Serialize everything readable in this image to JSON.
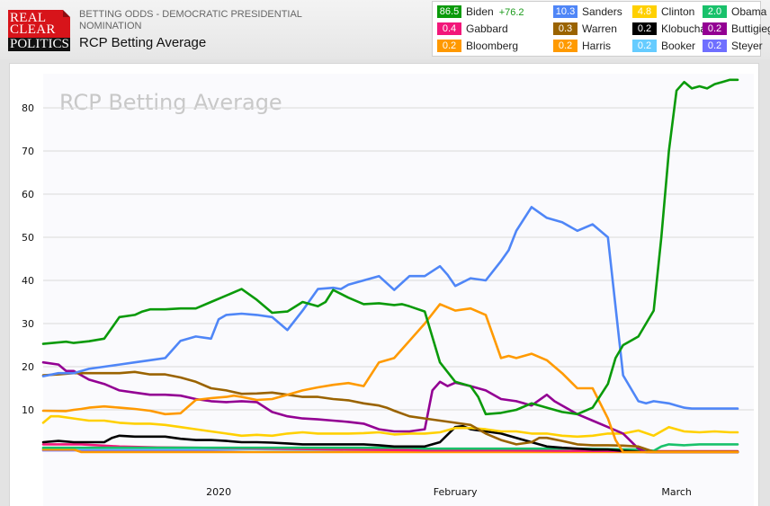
{
  "header": {
    "logo_lines": [
      "REAL",
      "CLEAR",
      "POLITICS"
    ],
    "subtitle": "BETTING ODDS - DEMOCRATIC PRESIDENTIAL NOMINATION",
    "title": "RCP Betting Average"
  },
  "legend": [
    {
      "name": "Biden",
      "value": "86.5",
      "change": "+76.2",
      "color": "#0a9a0a"
    },
    {
      "name": "Sanders",
      "value": "10.3",
      "color": "#4f86f7"
    },
    {
      "name": "Clinton",
      "value": "4.8",
      "color": "#ffd000"
    },
    {
      "name": "Obama",
      "value": "2.0",
      "color": "#19c16b"
    },
    {
      "name": "Gabbard",
      "value": "0.4",
      "color": "#f2177a"
    },
    {
      "name": "Warren",
      "value": "0.3",
      "color": "#9a6300"
    },
    {
      "name": "Klobuchar",
      "value": "0.2",
      "color": "#000000"
    },
    {
      "name": "Buttigieg",
      "value": "0.2",
      "color": "#930093"
    },
    {
      "name": "Bloomberg",
      "value": "0.2",
      "color": "#ff9900"
    },
    {
      "name": "Harris",
      "value": "0.2",
      "color": "#ff9a00"
    },
    {
      "name": "Booker",
      "value": "0.2",
      "color": "#66ccff"
    },
    {
      "name": "Steyer",
      "value": "0.2",
      "color": "#6f6fff"
    }
  ],
  "chart_data": {
    "type": "line",
    "title": "RCP Betting Average",
    "xlabel": "",
    "ylabel": "",
    "ylim": [
      0,
      88
    ],
    "yticks": [
      10,
      20,
      30,
      40,
      50,
      60,
      70,
      80
    ],
    "grid": true,
    "x_unit": "days since Dec 9, 2019",
    "xlim": [
      0,
      91
    ],
    "xticks": [
      {
        "x": 23,
        "label": "2020"
      },
      {
        "x": 54,
        "label": "February"
      },
      {
        "x": 83,
        "label": "March"
      }
    ],
    "series": [
      {
        "name": "Biden",
        "color": "#0a9a0a",
        "x": [
          0,
          3,
          4,
          6,
          8,
          10,
          12,
          13,
          14,
          16,
          18,
          20,
          22,
          24,
          26,
          28,
          30,
          32,
          34,
          36,
          37,
          38,
          40,
          42,
          44,
          46,
          47,
          48,
          50,
          52,
          54,
          56,
          57,
          58,
          60,
          62,
          64,
          66,
          67,
          68,
          70,
          72,
          74,
          75,
          76,
          78,
          80,
          81,
          82,
          83,
          84,
          85,
          86,
          87,
          88,
          89,
          90,
          91
        ],
        "y": [
          25.3,
          25.8,
          25.5,
          25.9,
          26.5,
          31.5,
          32.0,
          32.8,
          33.3,
          33.3,
          33.5,
          33.5,
          35.0,
          36.5,
          38.0,
          35.5,
          32.5,
          32.8,
          35.0,
          34.0,
          35.0,
          37.8,
          36.0,
          34.5,
          34.7,
          34.3,
          34.5,
          34.0,
          32.8,
          21.0,
          16.5,
          15.5,
          13.0,
          9.0,
          9.3,
          10.0,
          11.5,
          10.5,
          10.0,
          9.5,
          9.0,
          10.5,
          16.0,
          22.0,
          25.0,
          27.0,
          33.0,
          50.0,
          70.0,
          84.0,
          86.0,
          84.5,
          85.0,
          84.5,
          85.5,
          86.0,
          86.5,
          86.5
        ]
      },
      {
        "name": "Sanders",
        "color": "#4f86f7",
        "x": [
          0,
          2,
          4,
          6,
          8,
          10,
          12,
          14,
          16,
          18,
          20,
          22,
          23,
          24,
          26,
          28,
          30,
          32,
          34,
          36,
          38,
          39,
          40,
          42,
          44,
          46,
          48,
          50,
          52,
          53,
          54,
          56,
          58,
          60,
          61,
          62,
          64,
          66,
          68,
          70,
          72,
          74,
          76,
          78,
          79,
          80,
          82,
          83,
          84,
          85,
          86,
          87,
          88,
          89,
          90,
          91
        ],
        "y": [
          17.8,
          18.5,
          18.5,
          19.5,
          20.0,
          20.5,
          21.0,
          21.5,
          22.0,
          26.0,
          27.0,
          26.5,
          31.0,
          32.0,
          32.3,
          32.0,
          31.5,
          28.5,
          33.0,
          38.0,
          38.3,
          38.0,
          39.0,
          40.0,
          41.0,
          37.8,
          41.0,
          41.0,
          43.3,
          41.3,
          38.7,
          40.5,
          40.0,
          44.5,
          47.0,
          51.5,
          57.0,
          54.5,
          53.5,
          51.5,
          53.0,
          50.0,
          18.0,
          12.0,
          11.5,
          12.0,
          11.5,
          11.0,
          10.5,
          10.3,
          10.3,
          10.3,
          10.3,
          10.3,
          10.3,
          10.3
        ]
      },
      {
        "name": "Harris",
        "color": "#ff9a00",
        "x": [
          0,
          3,
          4,
          5,
          6,
          8,
          10,
          12,
          14,
          16,
          18,
          20,
          22,
          24,
          25,
          26,
          28,
          30,
          32,
          34,
          36,
          38,
          40,
          42,
          44,
          46,
          48,
          50,
          52,
          54,
          56,
          58,
          60,
          61,
          62,
          64,
          66,
          68,
          70,
          72,
          74,
          75,
          76,
          78,
          80,
          81,
          82,
          84,
          86,
          88,
          90,
          91
        ],
        "y": [
          9.8,
          9.7,
          10.0,
          10.2,
          10.5,
          10.8,
          10.5,
          10.2,
          9.8,
          9.0,
          9.2,
          12.3,
          12.7,
          13.0,
          13.3,
          13.0,
          12.3,
          12.5,
          13.5,
          14.5,
          15.2,
          15.8,
          16.2,
          15.5,
          21.0,
          22.0,
          26.0,
          30.0,
          34.5,
          33.0,
          33.5,
          32.0,
          22.0,
          22.5,
          22.0,
          23.0,
          21.5,
          18.5,
          15.0,
          15.0,
          8.0,
          3.0,
          0.2,
          0.2,
          0.2,
          0.2,
          0.2,
          0.2,
          0.2,
          0.2,
          0.2,
          0.2
        ]
      },
      {
        "name": "Warren",
        "color": "#9a6300",
        "x": [
          0,
          2,
          4,
          6,
          8,
          10,
          12,
          14,
          16,
          18,
          20,
          22,
          24,
          26,
          28,
          30,
          32,
          34,
          36,
          38,
          40,
          42,
          44,
          45,
          46,
          48,
          50,
          52,
          54,
          56,
          58,
          60,
          62,
          64,
          65,
          66,
          68,
          70,
          72,
          74,
          76,
          78,
          80,
          82,
          84,
          86,
          88,
          90,
          91
        ],
        "y": [
          18.0,
          18.2,
          18.5,
          18.5,
          18.5,
          18.5,
          18.8,
          18.2,
          18.2,
          17.5,
          16.5,
          15.0,
          14.5,
          13.7,
          13.8,
          14.0,
          13.5,
          13.0,
          13.0,
          12.5,
          12.2,
          11.5,
          11.0,
          10.5,
          9.8,
          8.5,
          8.0,
          7.5,
          7.0,
          6.5,
          4.5,
          3.0,
          2.0,
          2.5,
          3.5,
          3.5,
          2.8,
          2.0,
          1.8,
          1.8,
          1.7,
          1.5,
          0.3,
          0.3,
          0.3,
          0.3,
          0.3,
          0.3,
          0.3
        ]
      },
      {
        "name": "Buttigieg",
        "color": "#930093",
        "x": [
          0,
          2,
          3,
          4,
          6,
          8,
          10,
          12,
          14,
          16,
          18,
          20,
          22,
          24,
          26,
          28,
          30,
          32,
          34,
          36,
          38,
          40,
          42,
          44,
          46,
          48,
          50,
          51,
          52,
          53,
          54,
          56,
          58,
          60,
          62,
          63,
          64,
          66,
          67,
          68,
          70,
          72,
          74,
          76,
          78,
          79,
          80,
          82,
          84,
          86,
          88,
          90,
          91
        ],
        "y": [
          21.0,
          20.5,
          19.0,
          19.0,
          17.0,
          16.0,
          14.5,
          14.0,
          13.5,
          13.5,
          13.3,
          12.5,
          12.0,
          11.8,
          12.0,
          11.8,
          9.5,
          8.5,
          8.0,
          7.8,
          7.5,
          7.2,
          6.8,
          5.5,
          5.0,
          5.0,
          5.5,
          14.5,
          16.5,
          15.5,
          16.3,
          15.5,
          14.5,
          12.5,
          12.0,
          11.5,
          11.0,
          13.5,
          12.0,
          11.0,
          9.0,
          7.5,
          6.0,
          4.5,
          1.0,
          0.2,
          0.2,
          0.2,
          0.2,
          0.2,
          0.2,
          0.2,
          0.2
        ]
      },
      {
        "name": "Clinton",
        "color": "#ffd000",
        "x": [
          0,
          1,
          2,
          4,
          6,
          8,
          10,
          12,
          14,
          16,
          18,
          20,
          22,
          24,
          26,
          28,
          30,
          32,
          34,
          36,
          38,
          40,
          42,
          44,
          46,
          48,
          50,
          52,
          54,
          56,
          58,
          60,
          62,
          64,
          66,
          68,
          70,
          72,
          74,
          76,
          78,
          80,
          82,
          84,
          86,
          88,
          90,
          91
        ],
        "y": [
          7.0,
          8.5,
          8.5,
          8.0,
          7.5,
          7.5,
          7.0,
          6.8,
          6.8,
          6.5,
          6.0,
          5.5,
          5.0,
          4.5,
          4.0,
          4.2,
          4.0,
          4.5,
          4.8,
          4.5,
          4.5,
          4.5,
          4.6,
          4.8,
          4.3,
          4.5,
          4.5,
          4.8,
          5.8,
          5.8,
          5.5,
          5.0,
          5.0,
          4.5,
          4.5,
          4.0,
          3.8,
          4.0,
          4.5,
          4.5,
          5.2,
          4.0,
          6.0,
          5.0,
          4.8,
          5.0,
          4.8,
          4.8
        ]
      },
      {
        "name": "Klobuchar",
        "color": "#000000",
        "x": [
          0,
          2,
          4,
          6,
          8,
          9,
          10,
          12,
          14,
          16,
          18,
          20,
          22,
          24,
          26,
          28,
          30,
          32,
          34,
          36,
          38,
          40,
          42,
          44,
          46,
          48,
          50,
          52,
          54,
          55,
          56,
          58,
          60,
          62,
          64,
          66,
          68,
          70,
          72,
          74,
          76,
          78,
          80,
          82,
          84,
          86,
          88,
          90,
          91
        ],
        "y": [
          2.5,
          2.8,
          2.5,
          2.5,
          2.5,
          3.5,
          4.0,
          3.8,
          3.8,
          3.8,
          3.3,
          3.0,
          3.0,
          2.8,
          2.5,
          2.5,
          2.4,
          2.2,
          2.0,
          2.0,
          2.0,
          2.0,
          2.0,
          1.8,
          1.5,
          1.5,
          1.5,
          2.5,
          6.0,
          6.2,
          5.5,
          5.0,
          4.5,
          3.5,
          2.5,
          1.5,
          1.2,
          1.0,
          0.8,
          0.8,
          0.5,
          0.3,
          0.2,
          0.2,
          0.2,
          0.2,
          0.2,
          0.2,
          0.2
        ]
      },
      {
        "name": "Obama",
        "color": "#19c16b",
        "x": [
          0,
          10,
          20,
          30,
          40,
          48,
          50,
          60,
          70,
          78,
          80,
          81,
          82,
          84,
          86,
          88,
          90,
          91
        ],
        "y": [
          1.2,
          1.2,
          1.2,
          1.2,
          1.2,
          1.2,
          1.0,
          1.0,
          1.0,
          0.8,
          0.5,
          1.5,
          2.0,
          1.8,
          2.0,
          2.0,
          2.0,
          2.0
        ]
      },
      {
        "name": "Gabbard",
        "color": "#f2177a",
        "x": [
          0,
          5,
          10,
          15,
          20,
          30,
          40,
          50,
          60,
          70,
          80,
          91
        ],
        "y": [
          2.0,
          2.0,
          1.5,
          1.3,
          1.2,
          1.0,
          0.8,
          0.6,
          0.6,
          0.5,
          0.4,
          0.4
        ]
      },
      {
        "name": "Bloomberg",
        "color": "#ff9900",
        "x": [
          0,
          4,
          5,
          20,
          30,
          40,
          50,
          60,
          70,
          80,
          91
        ],
        "y": [
          0.8,
          0.8,
          0.2,
          0.2,
          0.2,
          0.2,
          0.2,
          0.2,
          0.2,
          0.2,
          0.2
        ]
      },
      {
        "name": "Booker",
        "color": "#66ccff",
        "x": [
          0,
          20,
          30,
          40,
          50,
          60,
          70,
          80,
          91
        ],
        "y": [
          1.0,
          1.0,
          0.8,
          0.5,
          0.4,
          0.4,
          0.3,
          0.2,
          0.2
        ]
      },
      {
        "name": "Steyer",
        "color": "#6f6fff",
        "x": [
          0,
          20,
          25,
          30,
          40,
          50,
          60,
          70,
          80,
          91
        ],
        "y": [
          0.6,
          0.6,
          0.8,
          1.0,
          0.8,
          0.6,
          0.5,
          0.4,
          0.2,
          0.2
        ]
      }
    ]
  }
}
